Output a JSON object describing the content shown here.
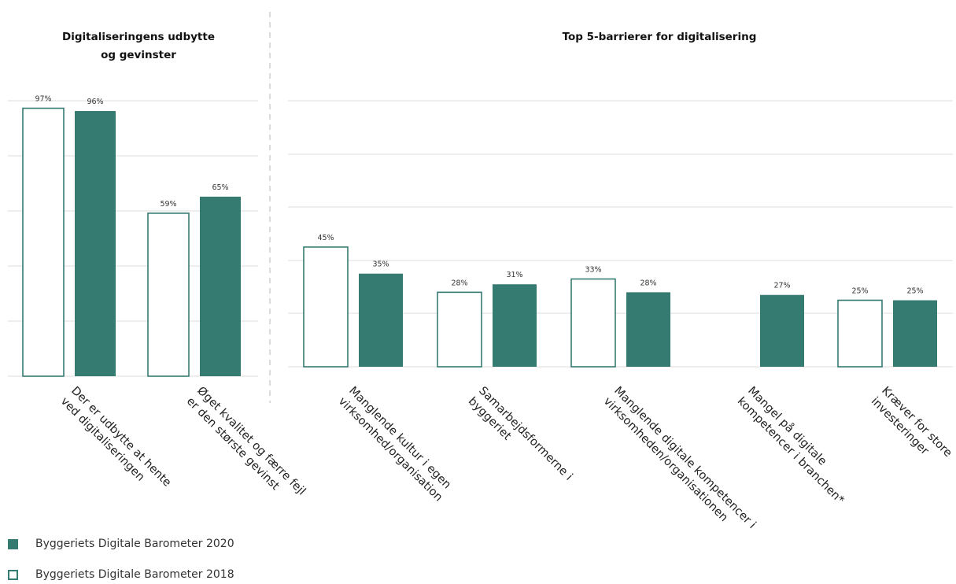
{
  "colors": {
    "series_2020": "#367b72",
    "series_2018_fill": "#ffffff",
    "series_2018_stroke": "#367b72",
    "grid": "#dedede",
    "text": "#222222"
  },
  "chart_data": [
    {
      "type": "bar",
      "title": "Digitaliseringens udbytte og gevinster",
      "title_lines": [
        "Digitaliseringens udbytte",
        "og gevinster"
      ],
      "categories": [
        "Der er udbytte at hente ved digitaliseringen",
        "Øget kvalitet og færre fejl er den største gevinst"
      ],
      "category_lines": [
        [
          "Der er udbytte at hente",
          "ved digitaliseringen"
        ],
        [
          "Øget kvalitet og færre fejl",
          "er den største gevinst"
        ]
      ],
      "series": [
        {
          "name": "Byggeriets Digitale Barometer 2018",
          "values": [
            97,
            59
          ],
          "labels": [
            "97%",
            "59%"
          ]
        },
        {
          "name": "Byggeriets Digitale Barometer 2020",
          "values": [
            96,
            65
          ],
          "labels": [
            "96%",
            "65%"
          ]
        }
      ],
      "ylim": [
        0,
        100
      ],
      "grid": true
    },
    {
      "type": "bar",
      "title": "Top 5-barrierer for digitalisering",
      "categories": [
        "Manglende kultur i egen virksomhed/organisation",
        "Samarbejdsformerne i byggeriet",
        "Manglende digitale kompetencer i virksomheden/organisationen",
        "Mangel på digitale kompetencer i branchen*",
        "Kræver for store investeringer"
      ],
      "category_lines": [
        [
          "Manglende kultur i egen",
          "virksomhed/organisation"
        ],
        [
          "Samarbejdsformerne i",
          "byggeriet"
        ],
        [
          "Manglende digitale kompetencer i",
          "virksomheden/organisationen"
        ],
        [
          "Mangel på digitale",
          "kompetencer i branchen*"
        ],
        [
          "Kræver for store",
          "investeringer"
        ]
      ],
      "series": [
        {
          "name": "Byggeriets Digitale Barometer 2018",
          "values": [
            45,
            28,
            33,
            null,
            25
          ],
          "labels": [
            "45%",
            "28%",
            "33%",
            "",
            "25%"
          ]
        },
        {
          "name": "Byggeriets Digitale Barometer 2020",
          "values": [
            35,
            31,
            28,
            27,
            25
          ],
          "labels": [
            "35%",
            "31%",
            "28%",
            "27%",
            "25%"
          ]
        }
      ],
      "ylim": [
        0,
        100
      ],
      "grid": true
    }
  ],
  "legend": [
    {
      "label": "Byggeriets Digitale Barometer 2020",
      "style": "filled"
    },
    {
      "label": "Byggeriets Digitale Barometer 2018",
      "style": "outline"
    }
  ]
}
